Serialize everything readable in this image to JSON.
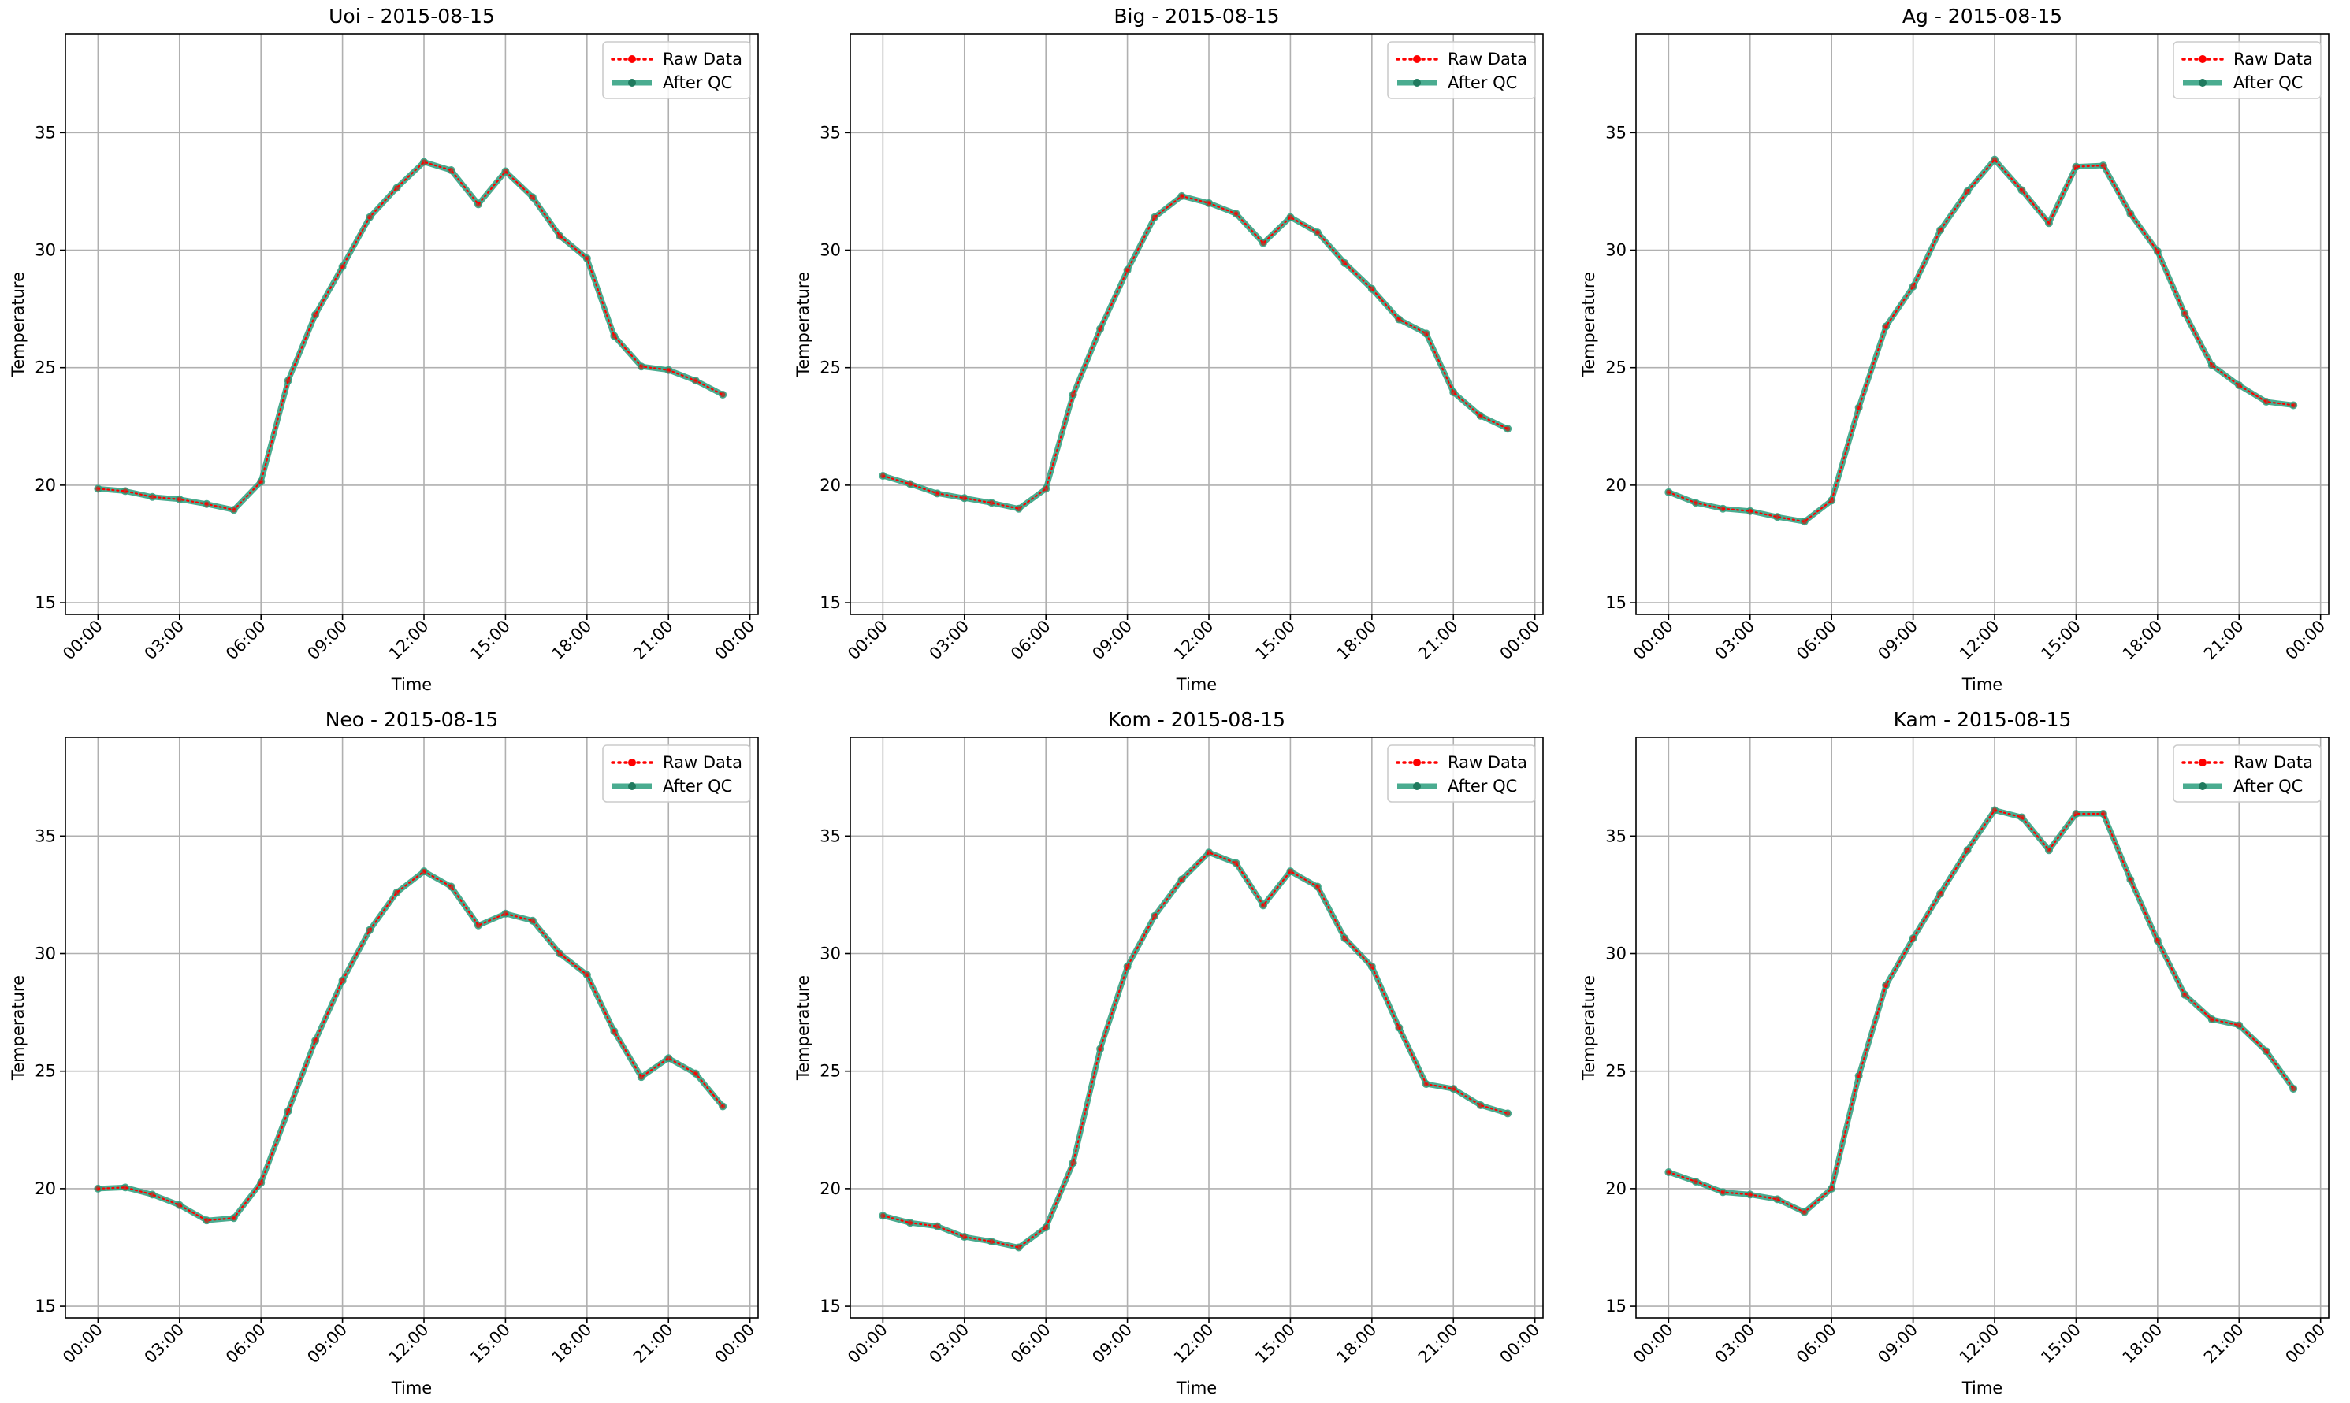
{
  "chart_data": [
    {
      "type": "line",
      "title": "Uoi - 2015-08-15",
      "xlabel": "Time",
      "ylabel": "Temperature",
      "ylim": [
        14.5,
        39.2
      ],
      "yticks": [
        "15",
        "20",
        "25",
        "30",
        "35"
      ],
      "xlim_hours": [
        -1.2,
        24.3
      ],
      "xticks": [
        "00:00",
        "03:00",
        "06:00",
        "09:00",
        "12:00",
        "15:00",
        "18:00",
        "21:00",
        "00:00"
      ],
      "grid": true,
      "legend": "top-right",
      "x_hours": [
        0,
        1,
        2,
        3,
        4,
        5,
        6,
        7,
        8,
        9,
        10,
        11,
        12,
        13,
        14,
        15,
        16,
        17,
        18,
        19,
        20,
        21,
        22,
        23
      ],
      "series": [
        {
          "name": "Raw Data",
          "color": "#ff0000",
          "style": "dotted",
          "values": [
            19.85,
            19.75,
            19.5,
            19.4,
            19.2,
            18.95,
            20.15,
            24.45,
            27.25,
            29.3,
            31.4,
            32.65,
            33.75,
            33.4,
            31.95,
            33.35,
            32.25,
            30.6,
            29.65,
            26.35,
            25.05,
            24.9,
            24.45,
            23.85
          ]
        },
        {
          "name": "After QC",
          "color": "#2a9d7c",
          "style": "solid",
          "values": [
            19.85,
            19.75,
            19.5,
            19.4,
            19.2,
            18.95,
            20.15,
            24.45,
            27.25,
            29.3,
            31.4,
            32.65,
            33.75,
            33.4,
            31.95,
            33.35,
            32.25,
            30.6,
            29.65,
            26.35,
            25.05,
            24.9,
            24.45,
            23.85
          ]
        }
      ]
    },
    {
      "type": "line",
      "title": "Big - 2015-08-15",
      "xlabel": "Time",
      "ylabel": "Temperature",
      "ylim": [
        14.5,
        39.2
      ],
      "yticks": [
        "15",
        "20",
        "25",
        "30",
        "35"
      ],
      "xlim_hours": [
        -1.2,
        24.3
      ],
      "xticks": [
        "00:00",
        "03:00",
        "06:00",
        "09:00",
        "12:00",
        "15:00",
        "18:00",
        "21:00",
        "00:00"
      ],
      "grid": true,
      "legend": "top-right",
      "x_hours": [
        0,
        1,
        2,
        3,
        4,
        5,
        6,
        7,
        8,
        9,
        10,
        11,
        12,
        13,
        14,
        15,
        16,
        17,
        18,
        19,
        20,
        21,
        22,
        23
      ],
      "series": [
        {
          "name": "Raw Data",
          "color": "#ff0000",
          "style": "dotted",
          "values": [
            20.4,
            20.05,
            19.65,
            19.45,
            19.25,
            19.0,
            19.85,
            23.85,
            26.65,
            29.15,
            31.4,
            32.3,
            32.0,
            31.55,
            30.3,
            31.4,
            30.75,
            29.45,
            28.35,
            27.05,
            26.45,
            23.95,
            22.95,
            22.4
          ]
        },
        {
          "name": "After QC",
          "color": "#2a9d7c",
          "style": "solid",
          "values": [
            20.4,
            20.05,
            19.65,
            19.45,
            19.25,
            19.0,
            19.85,
            23.85,
            26.65,
            29.15,
            31.4,
            32.3,
            32.0,
            31.55,
            30.3,
            31.4,
            30.75,
            29.45,
            28.35,
            27.05,
            26.45,
            23.95,
            22.95,
            22.4
          ]
        }
      ]
    },
    {
      "type": "line",
      "title": "Ag - 2015-08-15",
      "xlabel": "Time",
      "ylabel": "Temperature",
      "ylim": [
        14.5,
        39.2
      ],
      "yticks": [
        "15",
        "20",
        "25",
        "30",
        "35"
      ],
      "xlim_hours": [
        -1.2,
        24.3
      ],
      "xticks": [
        "00:00",
        "03:00",
        "06:00",
        "09:00",
        "12:00",
        "15:00",
        "18:00",
        "21:00",
        "00:00"
      ],
      "grid": true,
      "legend": "top-right",
      "x_hours": [
        0,
        1,
        2,
        3,
        4,
        5,
        6,
        7,
        8,
        9,
        10,
        11,
        12,
        13,
        14,
        15,
        16,
        17,
        18,
        19,
        20,
        21,
        22,
        23
      ],
      "series": [
        {
          "name": "Raw Data",
          "color": "#ff0000",
          "style": "dotted",
          "values": [
            19.7,
            19.25,
            19.0,
            18.9,
            18.65,
            18.45,
            19.35,
            23.3,
            26.75,
            28.45,
            30.85,
            32.5,
            33.85,
            32.55,
            31.15,
            33.55,
            33.6,
            31.55,
            29.95,
            27.3,
            25.1,
            24.25,
            23.55,
            23.4
          ]
        },
        {
          "name": "After QC",
          "color": "#2a9d7c",
          "style": "solid",
          "values": [
            19.7,
            19.25,
            19.0,
            18.9,
            18.65,
            18.45,
            19.35,
            23.3,
            26.75,
            28.45,
            30.85,
            32.5,
            33.85,
            32.55,
            31.15,
            33.55,
            33.6,
            31.55,
            29.95,
            27.3,
            25.1,
            24.25,
            23.55,
            23.4
          ]
        }
      ]
    },
    {
      "type": "line",
      "title": "Neo - 2015-08-15",
      "xlabel": "Time",
      "ylabel": "Temperature",
      "ylim": [
        14.5,
        39.2
      ],
      "yticks": [
        "15",
        "20",
        "25",
        "30",
        "35"
      ],
      "xlim_hours": [
        -1.2,
        24.3
      ],
      "xticks": [
        "00:00",
        "03:00",
        "06:00",
        "09:00",
        "12:00",
        "15:00",
        "18:00",
        "21:00",
        "00:00"
      ],
      "grid": true,
      "legend": "top-right",
      "x_hours": [
        0,
        1,
        2,
        3,
        4,
        5,
        6,
        7,
        8,
        9,
        10,
        11,
        12,
        13,
        14,
        15,
        16,
        17,
        18,
        19,
        20,
        21,
        22,
        23
      ],
      "series": [
        {
          "name": "Raw Data",
          "color": "#ff0000",
          "style": "dotted",
          "values": [
            20.0,
            20.05,
            19.75,
            19.3,
            18.65,
            18.75,
            20.25,
            23.3,
            26.3,
            28.85,
            31.0,
            32.6,
            33.5,
            32.85,
            31.2,
            31.7,
            31.4,
            30.0,
            29.1,
            26.7,
            24.75,
            25.55,
            24.9,
            23.5
          ]
        },
        {
          "name": "After QC",
          "color": "#2a9d7c",
          "style": "solid",
          "values": [
            20.0,
            20.05,
            19.75,
            19.3,
            18.65,
            18.75,
            20.25,
            23.3,
            26.3,
            28.85,
            31.0,
            32.6,
            33.5,
            32.85,
            31.2,
            31.7,
            31.4,
            30.0,
            29.1,
            26.7,
            24.75,
            25.55,
            24.9,
            23.5
          ]
        }
      ]
    },
    {
      "type": "line",
      "title": "Kom - 2015-08-15",
      "xlabel": "Time",
      "ylabel": "Temperature",
      "ylim": [
        14.5,
        39.2
      ],
      "yticks": [
        "15",
        "20",
        "25",
        "30",
        "35"
      ],
      "xlim_hours": [
        -1.2,
        24.3
      ],
      "xticks": [
        "00:00",
        "03:00",
        "06:00",
        "09:00",
        "12:00",
        "15:00",
        "18:00",
        "21:00",
        "00:00"
      ],
      "grid": true,
      "legend": "top-right",
      "x_hours": [
        0,
        1,
        2,
        3,
        4,
        5,
        6,
        7,
        8,
        9,
        10,
        11,
        12,
        13,
        14,
        15,
        16,
        17,
        18,
        19,
        20,
        21,
        22,
        23
      ],
      "series": [
        {
          "name": "Raw Data",
          "color": "#ff0000",
          "style": "dotted",
          "values": [
            18.85,
            18.55,
            18.4,
            17.95,
            17.75,
            17.5,
            18.35,
            21.1,
            25.95,
            29.45,
            31.6,
            33.15,
            34.3,
            33.85,
            32.05,
            33.5,
            32.85,
            30.65,
            29.45,
            26.85,
            24.45,
            24.25,
            23.55,
            23.2
          ]
        },
        {
          "name": "After QC",
          "color": "#2a9d7c",
          "style": "solid",
          "values": [
            18.85,
            18.55,
            18.4,
            17.95,
            17.75,
            17.5,
            18.35,
            21.1,
            25.95,
            29.45,
            31.6,
            33.15,
            34.3,
            33.85,
            32.05,
            33.5,
            32.85,
            30.65,
            29.45,
            26.85,
            24.45,
            24.25,
            23.55,
            23.2
          ]
        }
      ]
    },
    {
      "type": "line",
      "title": "Kam - 2015-08-15",
      "xlabel": "Time",
      "ylabel": "Temperature",
      "ylim": [
        14.5,
        39.2
      ],
      "yticks": [
        "15",
        "20",
        "25",
        "30",
        "35"
      ],
      "xlim_hours": [
        -1.2,
        24.3
      ],
      "xticks": [
        "00:00",
        "03:00",
        "06:00",
        "09:00",
        "12:00",
        "15:00",
        "18:00",
        "21:00",
        "00:00"
      ],
      "grid": true,
      "legend": "top-right",
      "x_hours": [
        0,
        1,
        2,
        3,
        4,
        5,
        6,
        7,
        8,
        9,
        10,
        11,
        12,
        13,
        14,
        15,
        16,
        17,
        18,
        19,
        20,
        21,
        22,
        23
      ],
      "series": [
        {
          "name": "Raw Data",
          "color": "#ff0000",
          "style": "dotted",
          "values": [
            20.7,
            20.3,
            19.85,
            19.75,
            19.55,
            19.0,
            20.0,
            24.8,
            28.65,
            30.65,
            32.55,
            34.4,
            36.1,
            35.8,
            34.4,
            35.95,
            35.95,
            33.15,
            30.55,
            28.25,
            27.2,
            26.95,
            25.85,
            24.25
          ]
        },
        {
          "name": "After QC",
          "color": "#2a9d7c",
          "style": "solid",
          "values": [
            20.7,
            20.3,
            19.85,
            19.75,
            19.55,
            19.0,
            20.0,
            24.8,
            28.65,
            30.65,
            32.55,
            34.4,
            36.1,
            35.8,
            34.4,
            35.95,
            35.95,
            33.15,
            30.55,
            28.25,
            27.2,
            26.95,
            25.85,
            24.25
          ]
        }
      ]
    }
  ]
}
